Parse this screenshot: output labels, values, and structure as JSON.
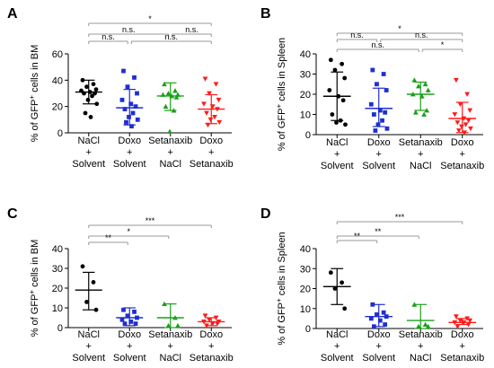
{
  "colors": {
    "series": [
      "#000000",
      "#1f2fd0",
      "#1aa01a",
      "#ff1a1a"
    ],
    "bracket": "#999999",
    "axis": "#000000"
  },
  "chart_data": [
    {
      "panel": "A",
      "type": "scatter",
      "ylabel_pre": "% of GFP",
      "ylabel_sup": "+",
      "ylabel_post": " cells in BM",
      "ylim": [
        0,
        60
      ],
      "yticks": [
        0,
        20,
        40,
        60
      ],
      "categories": [
        {
          "line1": "NaCl",
          "line2": "+",
          "line3": "Solvent"
        },
        {
          "line1": "Doxo",
          "line2": "+",
          "line3": "Solvent"
        },
        {
          "line1": "Setanaxib",
          "line2": "+",
          "line3": "NaCl"
        },
        {
          "line1": "Doxo",
          "line2": "+",
          "line3": "Setanaxib"
        }
      ],
      "series": [
        {
          "marker": "circle",
          "mean": 31,
          "sd_low": 22,
          "sd_high": 40,
          "values": [
            40,
            37,
            35,
            33,
            32,
            31,
            30,
            30,
            28,
            25,
            22,
            15,
            12
          ]
        },
        {
          "marker": "square",
          "mean": 19,
          "sd_low": 6,
          "sd_high": 33,
          "values": [
            47,
            42,
            35,
            30,
            25,
            22,
            20,
            18,
            15,
            12,
            10,
            8,
            5
          ]
        },
        {
          "marker": "triangle",
          "mean": 28,
          "sd_low": 17,
          "sd_high": 38,
          "values": [
            37,
            32,
            30,
            29,
            29,
            28,
            27,
            20,
            17,
            1
          ]
        },
        {
          "marker": "triangle-down",
          "mean": 18,
          "sd_low": 7,
          "sd_high": 29,
          "values": [
            41,
            37,
            30,
            25,
            22,
            20,
            18,
            15,
            12,
            10,
            8,
            6
          ]
        }
      ],
      "brackets": [
        {
          "from": 0,
          "to": 3,
          "label": "*"
        },
        {
          "from": 0,
          "to": 2,
          "label": "n.s."
        },
        {
          "from": 2,
          "to": 3,
          "label": "n.s."
        },
        {
          "from": 0,
          "to": 1,
          "label": "n.s."
        },
        {
          "from": 1,
          "to": 3,
          "label": "n.s."
        }
      ]
    },
    {
      "panel": "B",
      "type": "scatter",
      "ylabel_pre": "% of GFP",
      "ylabel_sup": "+",
      "ylabel_post": " cells in Spleen",
      "ylim": [
        0,
        40
      ],
      "yticks": [
        0,
        10,
        20,
        30,
        40
      ],
      "categories": [
        {
          "line1": "NaCl",
          "line2": "+",
          "line3": "Solvent"
        },
        {
          "line1": "Doxo",
          "line2": "+",
          "line3": "Solvent"
        },
        {
          "line1": "Setanaxib",
          "line2": "+",
          "line3": "NaCl"
        },
        {
          "line1": "Doxo",
          "line2": "+",
          "line3": "Setanaxib"
        }
      ],
      "series": [
        {
          "marker": "circle",
          "mean": 19,
          "sd_low": 7,
          "sd_high": 31,
          "values": [
            37,
            35,
            32,
            28,
            22,
            19,
            17,
            10,
            7,
            6,
            5
          ]
        },
        {
          "marker": "square",
          "mean": 13,
          "sd_low": 4,
          "sd_high": 23,
          "values": [
            32,
            30,
            25,
            22,
            15,
            12,
            11,
            10,
            7,
            5,
            3,
            2
          ]
        },
        {
          "marker": "triangle",
          "mean": 20,
          "sd_low": 12,
          "sd_high": 26,
          "values": [
            27,
            25,
            24,
            22,
            20,
            19,
            12,
            11,
            10
          ]
        },
        {
          "marker": "triangle-down",
          "mean": 8,
          "sd_low": 1,
          "sd_high": 16,
          "values": [
            27,
            20,
            15,
            12,
            10,
            8,
            7,
            6,
            5,
            4,
            3,
            2,
            1
          ]
        }
      ],
      "brackets": [
        {
          "from": 0,
          "to": 3,
          "label": "*"
        },
        {
          "from": 0,
          "to": 1,
          "label": "n.s."
        },
        {
          "from": 1,
          "to": 3,
          "label": "n.s."
        },
        {
          "from": 0,
          "to": 2,
          "label": "n.s."
        },
        {
          "from": 2,
          "to": 3,
          "label": "*"
        }
      ]
    },
    {
      "panel": "C",
      "type": "scatter",
      "ylabel_pre": "% of GFP",
      "ylabel_sup": "+",
      "ylabel_post": " cells in BM",
      "ylim": [
        0,
        40
      ],
      "yticks": [
        0,
        10,
        20,
        30,
        40
      ],
      "categories": [
        {
          "line1": "NaCl",
          "line2": "+",
          "line3": "Solvent"
        },
        {
          "line1": "Doxo",
          "line2": "+",
          "line3": "Solvent"
        },
        {
          "line1": "Setanaxib",
          "line2": "+",
          "line3": "NaCl"
        },
        {
          "line1": "Doxo",
          "line2": "+",
          "line3": "Setanaxib"
        }
      ],
      "series": [
        {
          "marker": "circle",
          "mean": 19,
          "sd_low": 9,
          "sd_high": 28,
          "values": [
            31,
            23,
            13,
            9
          ]
        },
        {
          "marker": "square",
          "mean": 5,
          "sd_low": 1,
          "sd_high": 10,
          "values": [
            9,
            8,
            6,
            5,
            4,
            3,
            2,
            2
          ]
        },
        {
          "marker": "triangle",
          "mean": 5,
          "sd_low": 0,
          "sd_high": 12,
          "values": [
            12,
            5,
            1,
            1
          ]
        },
        {
          "marker": "triangle-down",
          "mean": 3,
          "sd_low": 1,
          "sd_high": 5,
          "values": [
            6,
            5,
            4,
            3,
            3,
            2,
            2,
            1
          ]
        }
      ],
      "brackets": [
        {
          "from": 0,
          "to": 3,
          "label": "***"
        },
        {
          "from": 0,
          "to": 2,
          "label": "*"
        },
        {
          "from": 0,
          "to": 1,
          "label": "**"
        }
      ]
    },
    {
      "panel": "D",
      "type": "scatter",
      "ylabel_pre": "% of GFP",
      "ylabel_sup": "+",
      "ylabel_post": " cells in Spleen",
      "ylim": [
        0,
        40
      ],
      "yticks": [
        0,
        10,
        20,
        30,
        40
      ],
      "categories": [
        {
          "line1": "NaCl",
          "line2": "+",
          "line3": "Solvent"
        },
        {
          "line1": "Doxo",
          "line2": "+",
          "line3": "Solvent"
        },
        {
          "line1": "Setanaxib",
          "line2": "+",
          "line3": "NaCl"
        },
        {
          "line1": "Doxo",
          "line2": "+",
          "line3": "Setanaxib"
        }
      ],
      "series": [
        {
          "marker": "circle",
          "mean": 21,
          "sd_low": 12,
          "sd_high": 30,
          "values": [
            28,
            23,
            20,
            10
          ]
        },
        {
          "marker": "square",
          "mean": 6,
          "sd_low": 1,
          "sd_high": 12,
          "values": [
            12,
            8,
            7,
            6,
            5,
            4,
            2,
            1
          ]
        },
        {
          "marker": "triangle",
          "mean": 4,
          "sd_low": 0,
          "sd_high": 12,
          "values": [
            12,
            2,
            1,
            1
          ]
        },
        {
          "marker": "triangle-down",
          "mean": 3,
          "sd_low": 2,
          "sd_high": 5,
          "values": [
            6,
            5,
            4,
            4,
            3,
            3,
            2,
            1
          ]
        }
      ],
      "brackets": [
        {
          "from": 0,
          "to": 3,
          "label": "***"
        },
        {
          "from": 0,
          "to": 2,
          "label": "**"
        },
        {
          "from": 0,
          "to": 1,
          "label": "**"
        }
      ]
    }
  ]
}
